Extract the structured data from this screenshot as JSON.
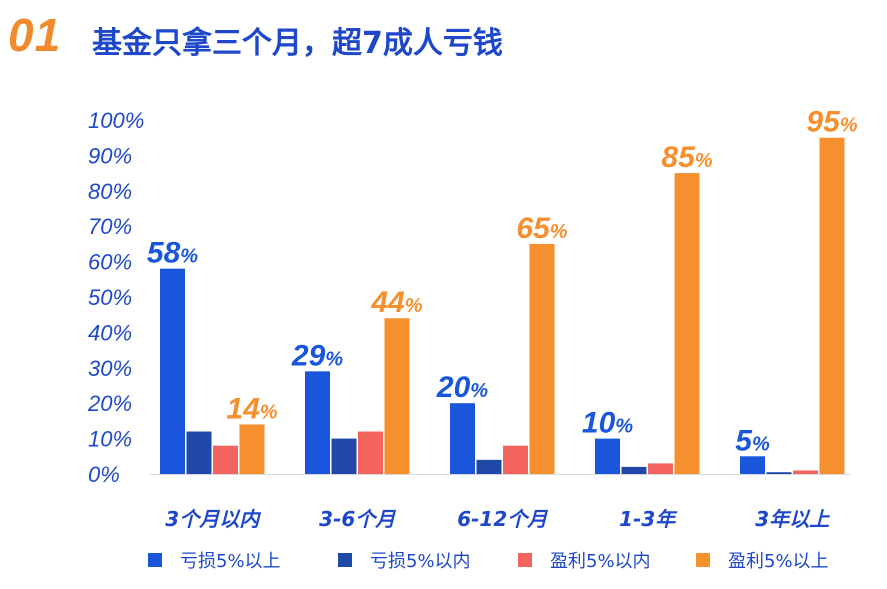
{
  "header": {
    "section_number": "01",
    "title": "基金只拿三个月，超7成人亏钱"
  },
  "chart_data": {
    "type": "bar",
    "title": "基金只拿三个月，超7成人亏钱",
    "categories": [
      "3个月以内",
      "3-6个月",
      "6-12个月",
      "1-3年",
      "3年以上"
    ],
    "series": [
      {
        "name": "亏损5%以上",
        "color": "#1a56db",
        "values": [
          58,
          29,
          20,
          10,
          5
        ]
      },
      {
        "name": "亏损5%以内",
        "color": "#1f48a8",
        "values": [
          12,
          10,
          4,
          2,
          0.5
        ]
      },
      {
        "name": "盈利5%以内",
        "color": "#f4645f",
        "values": [
          8,
          12,
          8,
          3,
          1
        ]
      },
      {
        "name": "盈利5%以上",
        "color": "#f6902f",
        "values": [
          14,
          44,
          65,
          85,
          95
        ]
      }
    ],
    "data_labels": [
      {
        "category": "3个月以内",
        "series": "亏损5%以上",
        "number": "58",
        "unit": "%"
      },
      {
        "category": "3个月以内",
        "series": "盈利5%以上",
        "number": "14",
        "unit": "%"
      },
      {
        "category": "3-6个月",
        "series": "亏损5%以上",
        "number": "29",
        "unit": "%"
      },
      {
        "category": "3-6个月",
        "series": "盈利5%以上",
        "number": "44",
        "unit": "%"
      },
      {
        "category": "6-12个月",
        "series": "亏损5%以上",
        "number": "20",
        "unit": "%"
      },
      {
        "category": "6-12个月",
        "series": "盈利5%以上",
        "number": "65",
        "unit": "%"
      },
      {
        "category": "1-3年",
        "series": "亏损5%以上",
        "number": "10",
        "unit": "%"
      },
      {
        "category": "1-3年",
        "series": "盈利5%以上",
        "number": "85",
        "unit": "%"
      },
      {
        "category": "3年以上",
        "series": "亏损5%以上",
        "number": "5",
        "unit": "%"
      },
      {
        "category": "3年以上",
        "series": "盈利5%以上",
        "number": "95",
        "unit": "%"
      }
    ],
    "yticks": [
      "0%",
      "10%",
      "20%",
      "30%",
      "40%",
      "50%",
      "60%",
      "70%",
      "80%",
      "90%",
      "100%"
    ],
    "ylim": [
      0,
      100
    ],
    "grid": false,
    "legend_position": "bottom"
  }
}
